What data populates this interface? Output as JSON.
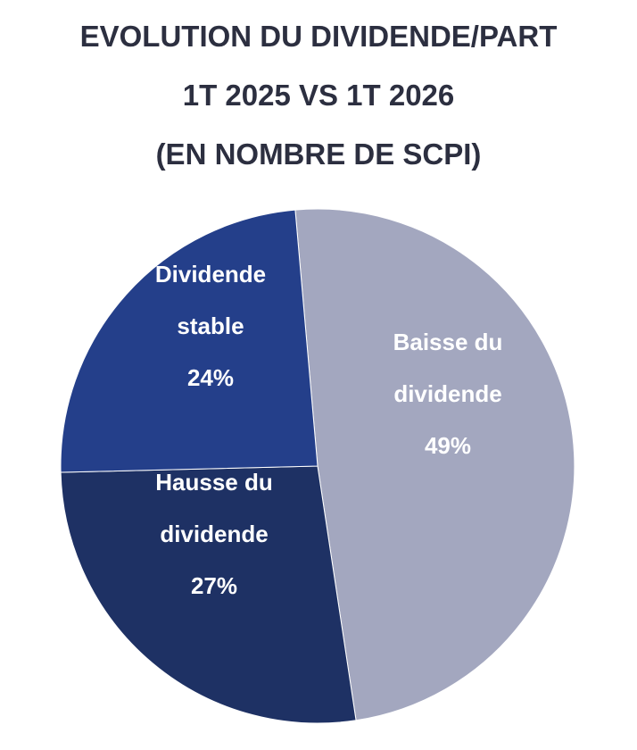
{
  "chart_data": {
    "type": "pie",
    "title_lines": [
      "EVOLUTION DU DIVIDENDE/PART",
      "1T 2025 VS 1T 2026",
      "(EN NOMBRE DE SCPI)"
    ],
    "slices": [
      {
        "label_lines": [
          "Baisse du",
          "dividende",
          "49%"
        ],
        "value": 49,
        "color": "#a3a7bf"
      },
      {
        "label_lines": [
          "Hausse du",
          "dividende",
          "27%"
        ],
        "value": 27,
        "color": "#1e3164"
      },
      {
        "label_lines": [
          "Dividende",
          "stable",
          "24%"
        ],
        "value": 24,
        "color": "#243f8a"
      }
    ]
  }
}
